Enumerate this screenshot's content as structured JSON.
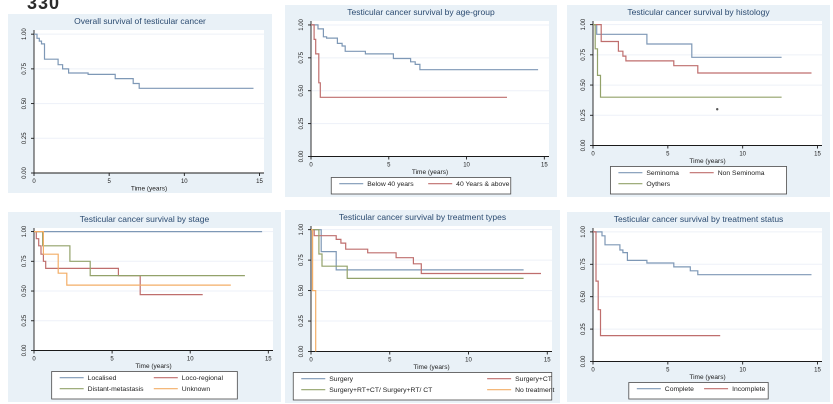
{
  "page": {
    "page_number": "330"
  },
  "style": {
    "figure_bg": "#e9f1f7",
    "plot_bg": "#ffffff",
    "grid_color": "#edf1f8",
    "axis_color": "#1a1a1a",
    "title_color": "#2a4a70",
    "tick_text_color": "#1c1c1c",
    "legend_border": "#4a4a4a"
  },
  "chart_data": [
    {
      "type": "line",
      "subtype": "kaplan-meier-step",
      "title": "Overall survival of testicular cancer",
      "xlabel": "Time (years)",
      "x_ticks": [
        0,
        5,
        10,
        15
      ],
      "y_ticks": [
        "0.00",
        "0.25",
        "0.50",
        "0.75",
        "1.00"
      ],
      "xlim": [
        0,
        15.3
      ],
      "ylim": [
        0,
        1.03
      ],
      "grid": true,
      "legend": null,
      "series": [
        {
          "name": "Overall survival",
          "color": "#7e98b6",
          "points": [
            [
              0,
              1.0
            ],
            [
              0.2,
              0.97
            ],
            [
              0.35,
              0.95
            ],
            [
              0.5,
              0.93
            ],
            [
              0.7,
              0.82
            ],
            [
              1.6,
              0.78
            ],
            [
              1.9,
              0.75
            ],
            [
              2.3,
              0.72
            ],
            [
              3.6,
              0.71
            ],
            [
              5.4,
              0.68
            ],
            [
              6.6,
              0.645
            ],
            [
              7.0,
              0.61
            ],
            [
              14.6,
              0.61
            ]
          ]
        }
      ]
    },
    {
      "type": "line",
      "subtype": "kaplan-meier-step",
      "title": "Testicular cancer survival by age-group",
      "xlabel": "Time (years)",
      "x_ticks": [
        0,
        5,
        10,
        15
      ],
      "y_ticks": [
        "0.00",
        "0.25",
        "0.50",
        "0.75",
        "1.00"
      ],
      "xlim": [
        0,
        15.3
      ],
      "ylim": [
        0,
        1.03
      ],
      "grid": true,
      "legend": {
        "position": "bottom",
        "cols": 2,
        "width_frac": 0.66,
        "col2_frac": 0.54
      },
      "series": [
        {
          "name": "Below 40 years",
          "color": "#7e98b6",
          "points": [
            [
              0,
              1.0
            ],
            [
              0.45,
              0.97
            ],
            [
              0.8,
              0.91
            ],
            [
              1.0,
              0.9
            ],
            [
              1.7,
              0.86
            ],
            [
              2.0,
              0.84
            ],
            [
              2.2,
              0.8
            ],
            [
              3.5,
              0.78
            ],
            [
              5.3,
              0.745
            ],
            [
              6.4,
              0.72
            ],
            [
              6.7,
              0.7
            ],
            [
              7.0,
              0.66
            ],
            [
              14.6,
              0.66
            ]
          ]
        },
        {
          "name": "40 Years & above",
          "color": "#bf6e6d",
          "points": [
            [
              0,
              1.0
            ],
            [
              0.2,
              0.89
            ],
            [
              0.3,
              0.78
            ],
            [
              0.5,
              0.56
            ],
            [
              0.6,
              0.45
            ],
            [
              12.6,
              0.45
            ]
          ]
        }
      ]
    },
    {
      "type": "line",
      "subtype": "kaplan-meier-step",
      "title": "Testicular cancer survival by histology",
      "xlabel": "Time (years)",
      "x_ticks": [
        0,
        5,
        10,
        15
      ],
      "y_ticks": [
        "0.00",
        "0.25",
        "0.50",
        "0.75",
        "1.00"
      ],
      "xlim": [
        0,
        15.3
      ],
      "ylim": [
        0,
        1.03
      ],
      "grid": true,
      "legend": {
        "position": "bottom",
        "cols": 2,
        "width_frac": 0.67,
        "col2_frac": 0.45
      },
      "annotations": [
        {
          "type": "dot",
          "x": 8.3,
          "y": 0.3
        }
      ],
      "series": [
        {
          "name": "Seminoma",
          "color": "#7e98b6",
          "points": [
            [
              0,
              1.0
            ],
            [
              0.25,
              0.92
            ],
            [
              3.6,
              0.84
            ],
            [
              6.6,
              0.73
            ],
            [
              12.6,
              0.73
            ]
          ]
        },
        {
          "name": "Non Seminoma",
          "color": "#bf6e6d",
          "points": [
            [
              0,
              1.0
            ],
            [
              0.55,
              0.86
            ],
            [
              1.7,
              0.78
            ],
            [
              2.0,
              0.74
            ],
            [
              2.2,
              0.7
            ],
            [
              5.4,
              0.66
            ],
            [
              7.0,
              0.6
            ],
            [
              14.6,
              0.6
            ]
          ]
        },
        {
          "name": "Oythers",
          "color": "#93a26a",
          "points": [
            [
              0,
              1.0
            ],
            [
              0.15,
              0.8
            ],
            [
              0.3,
              0.58
            ],
            [
              0.5,
              0.4
            ],
            [
              12.6,
              0.4
            ]
          ]
        }
      ]
    },
    {
      "type": "line",
      "subtype": "kaplan-meier-step",
      "title": "Testicular cancer survival by stage",
      "xlabel": "Time (years)",
      "x_ticks": [
        0,
        5,
        10,
        15
      ],
      "y_ticks": [
        "0.00",
        "0.25",
        "0.50",
        "0.75",
        "1.00"
      ],
      "xlim": [
        0,
        15.3
      ],
      "ylim": [
        0,
        1.03
      ],
      "grid": true,
      "legend": {
        "position": "bottom",
        "cols": 2,
        "width_frac": 0.68,
        "col2_frac": 0.55
      },
      "series": [
        {
          "name": "Localised",
          "color": "#7e98b6",
          "points": [
            [
              0,
              1.0
            ],
            [
              14.6,
              1.0
            ]
          ]
        },
        {
          "name": "Loco-regional",
          "color": "#bf6e6d",
          "points": [
            [
              0,
              1.0
            ],
            [
              0.15,
              0.94
            ],
            [
              0.3,
              0.88
            ],
            [
              0.45,
              0.81
            ],
            [
              0.6,
              0.75
            ],
            [
              0.75,
              0.69
            ],
            [
              5.4,
              0.63
            ],
            [
              6.8,
              0.47
            ],
            [
              10.8,
              0.47
            ]
          ]
        },
        {
          "name": "Distant-metastasis",
          "color": "#93a26a",
          "points": [
            [
              0,
              1.0
            ],
            [
              0.55,
              0.88
            ],
            [
              2.3,
              0.75
            ],
            [
              3.6,
              0.63
            ],
            [
              13.5,
              0.63
            ]
          ]
        },
        {
          "name": "Unknown",
          "color": "#f3ae67",
          "points": [
            [
              0,
              1.0
            ],
            [
              0.6,
              0.81
            ],
            [
              1.55,
              0.65
            ],
            [
              2.1,
              0.55
            ],
            [
              12.6,
              0.55
            ]
          ]
        }
      ]
    },
    {
      "type": "line",
      "subtype": "kaplan-meier-step",
      "title": "Testicular cancer survival by treatment types",
      "xlabel": "Time (years)",
      "x_ticks": [
        0,
        5,
        10,
        15
      ],
      "y_ticks": [
        "0.00",
        "0.25",
        "0.50",
        "0.75",
        "1.00"
      ],
      "xlim": [
        0,
        15.3
      ],
      "ylim": [
        0,
        1.03
      ],
      "grid": true,
      "legend": {
        "position": "bottom",
        "cols": 2,
        "width_frac": 0.94,
        "col2_frac": 0.75
      },
      "series": [
        {
          "name": "Surgery",
          "color": "#7e98b6",
          "points": [
            [
              0,
              1.0
            ],
            [
              0.65,
              0.82
            ],
            [
              1.6,
              0.67
            ],
            [
              13.5,
              0.67
            ]
          ]
        },
        {
          "name": "Surgery+CT",
          "color": "#bf6e6d",
          "points": [
            [
              0,
              1.0
            ],
            [
              0.2,
              0.95
            ],
            [
              1.6,
              0.92
            ],
            [
              1.9,
              0.89
            ],
            [
              2.2,
              0.84
            ],
            [
              3.6,
              0.81
            ],
            [
              5.4,
              0.77
            ],
            [
              6.5,
              0.72
            ],
            [
              7.0,
              0.64
            ],
            [
              14.6,
              0.64
            ]
          ]
        },
        {
          "name": "Surgery+RT+CT/ Surgery+RT/ CT",
          "color": "#93a26a",
          "points": [
            [
              0,
              1.0
            ],
            [
              0.5,
              0.8
            ],
            [
              0.7,
              0.7
            ],
            [
              2.3,
              0.6
            ],
            [
              13.5,
              0.6
            ]
          ]
        },
        {
          "name": "No treatment",
          "color": "#f3ae67",
          "points": [
            [
              0,
              1.0
            ],
            [
              0.1,
              0.5
            ],
            [
              0.3,
              0.0
            ]
          ]
        }
      ]
    },
    {
      "type": "line",
      "subtype": "kaplan-meier-step",
      "title": "Testicular cancer survival  by treatment status",
      "xlabel": "Time (years)",
      "x_ticks": [
        0,
        5,
        10,
        15
      ],
      "y_ticks": [
        "0.00",
        "0.25",
        "0.50",
        "0.75",
        "1.00"
      ],
      "xlim": [
        0,
        15.3
      ],
      "ylim": [
        0,
        1.03
      ],
      "grid": true,
      "legend": {
        "position": "bottom",
        "cols": 2,
        "width_frac": 0.53,
        "col2_frac": 0.54
      },
      "series": [
        {
          "name": "Complete",
          "color": "#7e98b6",
          "points": [
            [
              0,
              1.0
            ],
            [
              0.6,
              0.97
            ],
            [
              0.8,
              0.9
            ],
            [
              1.8,
              0.86
            ],
            [
              2.0,
              0.84
            ],
            [
              2.3,
              0.78
            ],
            [
              3.6,
              0.76
            ],
            [
              5.4,
              0.73
            ],
            [
              6.5,
              0.7
            ],
            [
              7.0,
              0.67
            ],
            [
              14.6,
              0.67
            ]
          ]
        },
        {
          "name": "Incomplete",
          "color": "#bf6e6d",
          "points": [
            [
              0,
              1.0
            ],
            [
              0.2,
              0.62
            ],
            [
              0.35,
              0.4
            ],
            [
              0.5,
              0.2
            ],
            [
              8.5,
              0.2
            ]
          ]
        }
      ]
    }
  ]
}
